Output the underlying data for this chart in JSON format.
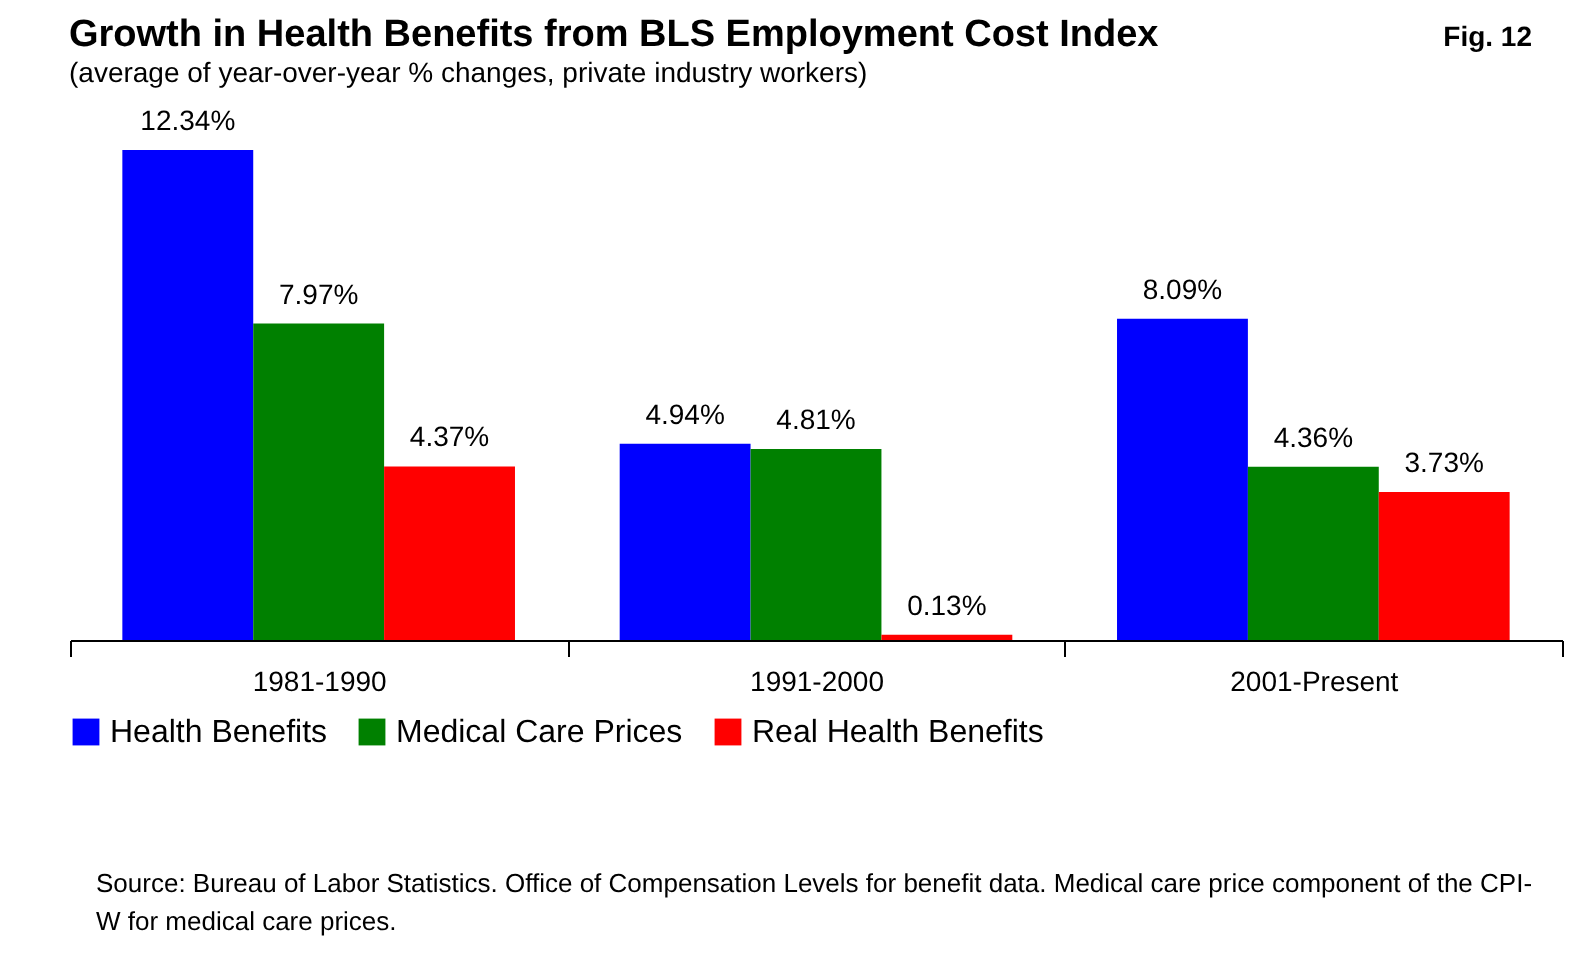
{
  "chart_data": {
    "type": "bar",
    "title": "Growth in Health Benefits from BLS Employment Cost Index",
    "subtitle": "(average of year-over-year % changes, private industry workers)",
    "categories": [
      "1981-1990",
      "1991-2000",
      "2001-Present"
    ],
    "series": [
      {
        "name": "Health Benefits",
        "color": "#0000ff",
        "values": [
          12.34,
          4.94,
          8.09
        ],
        "value_labels": [
          "12.34%",
          "4.94%",
          "8.09%"
        ]
      },
      {
        "name": "Medical Care Prices",
        "color": "#008000",
        "values": [
          7.97,
          4.81,
          4.36
        ],
        "value_labels": [
          "7.97%",
          "4.81%",
          "4.36%"
        ]
      },
      {
        "name": "Real Health Benefits",
        "color": "#ff0000",
        "values": [
          4.37,
          0.13,
          3.73
        ],
        "value_labels": [
          "4.37%",
          "0.13%",
          "3.73%"
        ]
      }
    ],
    "legend": "bottom",
    "annotations": [
      "Fig. 12",
      "Source: Bureau of Labor Statistics.  Office of Compensation Levels for benefit data.  Medical care price component of the CPI-W for medical care prices."
    ]
  }
}
